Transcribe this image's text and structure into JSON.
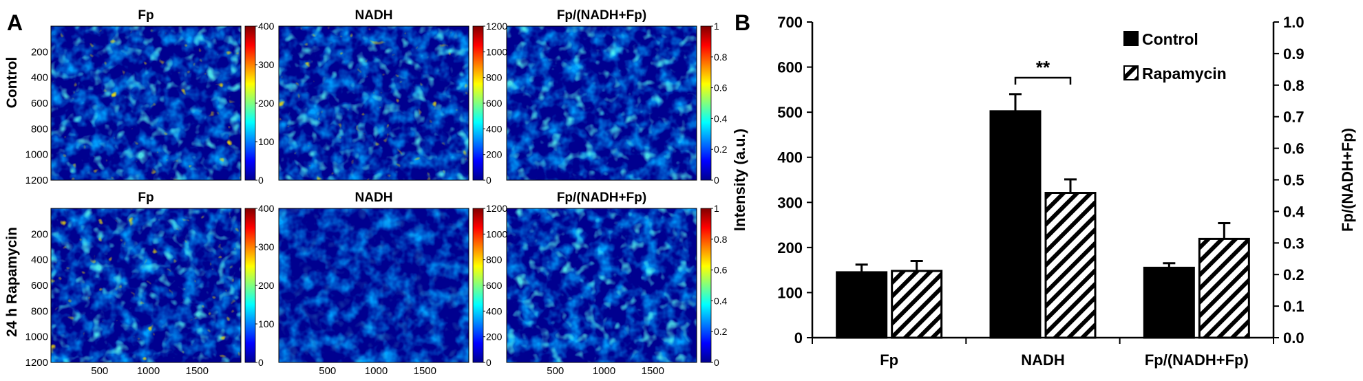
{
  "panel_a": {
    "label": "A",
    "row_labels": [
      "Control",
      "24 h Rapamycin"
    ],
    "map_titles": [
      "Fp",
      "NADH",
      "Fp/(NADH+Fp)"
    ],
    "y_ticks": [
      "200",
      "400",
      "600",
      "800",
      "1000",
      "1200"
    ],
    "x_ticks": [
      "500",
      "1000",
      "1500"
    ],
    "colorbars": [
      {
        "ticks": [
          "400",
          "300",
          "200",
          "100",
          "0"
        ]
      },
      {
        "ticks": [
          "1200",
          "1000",
          "800",
          "600",
          "400",
          "200",
          "0"
        ]
      },
      {
        "ticks": [
          "1",
          "0.8",
          "0.6",
          "0.4",
          "0.2",
          "0"
        ]
      }
    ],
    "colormap": [
      "#00008f",
      "#0000ff",
      "#0080ff",
      "#00ffff",
      "#80ff80",
      "#ffff00",
      "#ff8000",
      "#ff0000",
      "#800000"
    ]
  },
  "chart_data": {
    "label": "B",
    "type": "bar",
    "categories": [
      "Fp",
      "NADH",
      "Fp/(NADH+Fp)"
    ],
    "series": [
      {
        "name": "Control",
        "values": [
          145,
          502,
          155
        ],
        "errors": [
          17,
          38,
          10
        ],
        "fill": "solid"
      },
      {
        "name": "Rapamycin",
        "values": [
          148,
          321,
          219
        ],
        "errors": [
          22,
          30,
          35
        ],
        "fill": "hatched"
      }
    ],
    "ylabel": "Intensity (a.u.)",
    "ylim": [
      0,
      700
    ],
    "y_ticks": [
      "0",
      "100",
      "200",
      "300",
      "400",
      "500",
      "600",
      "700"
    ],
    "y2label": "Fp/(NADH+Fp)",
    "y2lim": [
      0.0,
      1.0
    ],
    "y2_ticks": [
      "0.0",
      "0.1",
      "0.2",
      "0.3",
      "0.4",
      "0.5",
      "0.6",
      "0.7",
      "0.8",
      "0.9",
      "1.0"
    ],
    "annotation": {
      "text": "**",
      "category": "NADH"
    },
    "legend": "top-right",
    "grid": false
  }
}
